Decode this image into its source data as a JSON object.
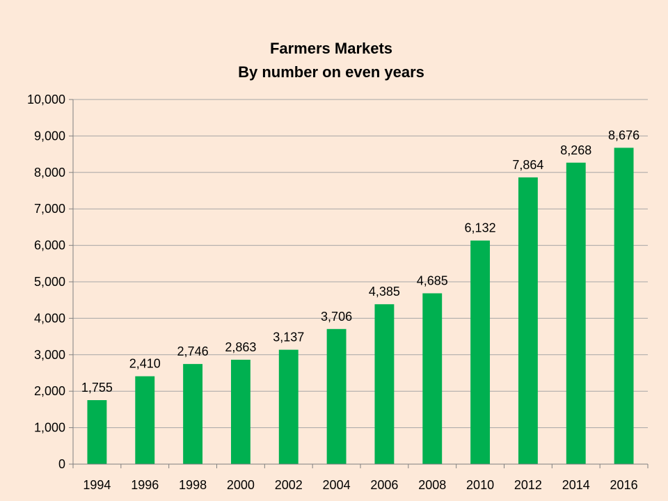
{
  "chart_data": {
    "type": "bar",
    "title": "Farmers Markets",
    "subtitle": "By number on even years",
    "categories": [
      "1994",
      "1996",
      "1998",
      "2000",
      "2002",
      "2004",
      "2006",
      "2008",
      "2010",
      "2012",
      "2014",
      "2016"
    ],
    "values": [
      1755,
      2410,
      2746,
      2863,
      3137,
      3706,
      4385,
      4685,
      6132,
      7864,
      8268,
      8676
    ],
    "value_labels": [
      "1,755",
      "2,410",
      "2,746",
      "2,863",
      "3,137",
      "3,706",
      "4,385",
      "4,685",
      "6,132",
      "7,864",
      "8,268",
      "8,676"
    ],
    "xlabel": "",
    "ylabel": "",
    "ylim": [
      0,
      10000
    ],
    "yticks": [
      0,
      1000,
      2000,
      3000,
      4000,
      5000,
      6000,
      7000,
      8000,
      9000,
      10000
    ],
    "ytick_labels": [
      "0",
      "1,000",
      "2,000",
      "3,000",
      "4,000",
      "5,000",
      "6,000",
      "7,000",
      "8,000",
      "9,000",
      "10,000"
    ],
    "grid": true,
    "legend": "none",
    "colors": {
      "background": "#fde9d9",
      "bar": "#00b050",
      "grid": "#a6a6a6",
      "axis": "#808080",
      "text": "#000000"
    }
  }
}
